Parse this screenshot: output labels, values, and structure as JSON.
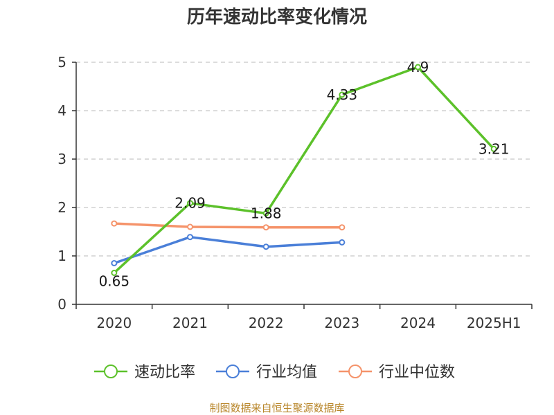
{
  "chart_data": {
    "type": "line",
    "title": "历年速动比率变化情况",
    "categories": [
      "2020",
      "2021",
      "2022",
      "2023",
      "2024",
      "2025H1"
    ],
    "ylim": [
      0,
      5
    ],
    "yticks": [
      "0",
      "1",
      "2",
      "3",
      "4",
      "5"
    ],
    "grid": true,
    "legend_position": "bottom",
    "series": [
      {
        "name": "速动比率",
        "color": "#5cc12a",
        "values": [
          0.65,
          2.09,
          1.88,
          4.33,
          4.9,
          3.21
        ],
        "labels": [
          "0.65",
          "2.09",
          "1.88",
          "4.33",
          "4.9",
          "3.21"
        ]
      },
      {
        "name": "行业均值",
        "color": "#4a7fd8",
        "values": [
          0.85,
          1.39,
          1.19,
          1.28,
          null,
          null
        ]
      },
      {
        "name": "行业中位数",
        "color": "#f5936a",
        "values": [
          1.67,
          1.6,
          1.59,
          1.59,
          null,
          null
        ]
      }
    ]
  },
  "footer": {
    "source": "制图数据来自恒生聚源数据库"
  }
}
